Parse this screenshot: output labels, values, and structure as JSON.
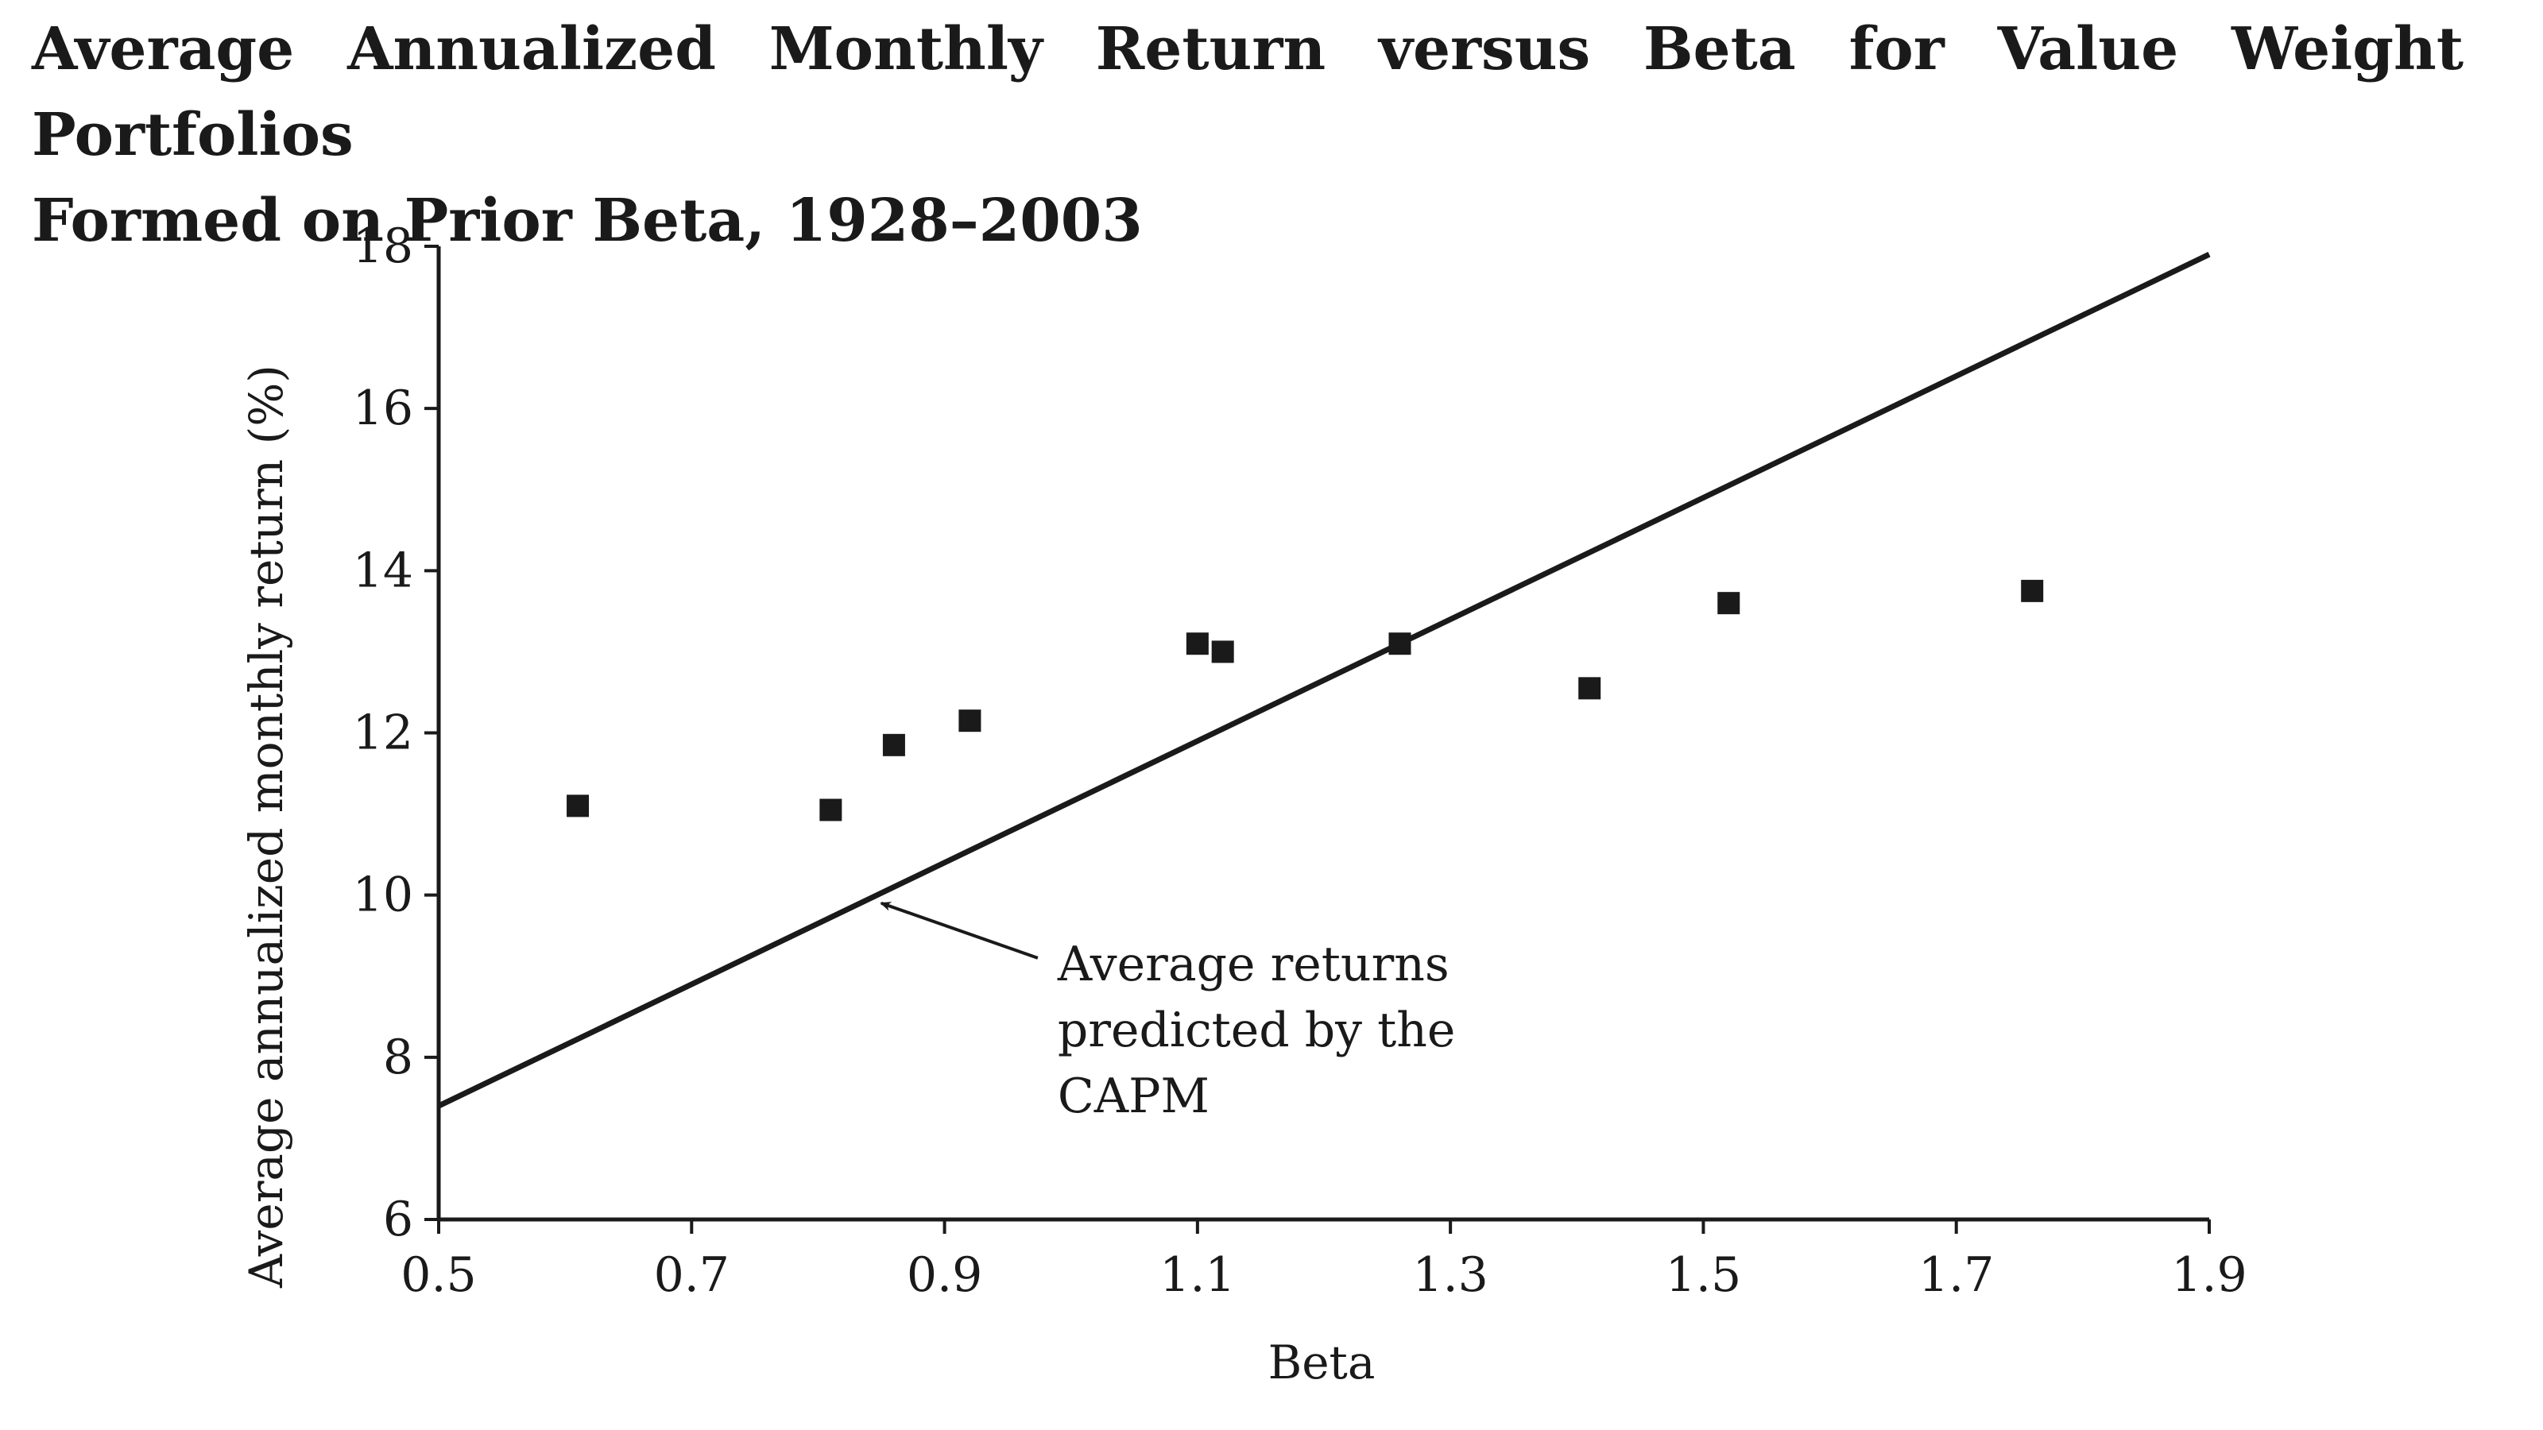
{
  "title": {
    "line1": "Average Annualized Monthly Return versus Beta for Value Weight Portfolios",
    "line2": "Formed on Prior Beta, 1928–2003"
  },
  "chart_data": {
    "type": "scatter",
    "title": "Average Annualized Monthly Return versus Beta for Value Weight Portfolios Formed on Prior Beta, 1928–2003",
    "xlabel": "Beta",
    "ylabel": "Average annualized monthly return (%)",
    "xlim": [
      0.5,
      1.9
    ],
    "ylim": [
      6,
      18
    ],
    "xticks": [
      "0.5",
      "0.7",
      "0.9",
      "1.1",
      "1.3",
      "1.5",
      "1.7",
      "1.9"
    ],
    "yticks": [
      "6",
      "8",
      "10",
      "12",
      "14",
      "16",
      "18"
    ],
    "grid": false,
    "points": [
      {
        "x": 0.61,
        "y": 11.1
      },
      {
        "x": 0.81,
        "y": 11.05
      },
      {
        "x": 0.86,
        "y": 11.85
      },
      {
        "x": 0.92,
        "y": 12.15
      },
      {
        "x": 1.1,
        "y": 13.1
      },
      {
        "x": 1.12,
        "y": 13.0
      },
      {
        "x": 1.26,
        "y": 13.1
      },
      {
        "x": 1.41,
        "y": 12.55
      },
      {
        "x": 1.52,
        "y": 13.6
      },
      {
        "x": 1.76,
        "y": 13.75
      }
    ],
    "capm_line": {
      "x": [
        0.5,
        1.9
      ],
      "y": [
        7.4,
        17.9
      ]
    },
    "annotation": {
      "lines": [
        "Average returns",
        "predicted by the",
        "CAPM"
      ],
      "arrow_target": {
        "x": 0.85,
        "y": 9.9
      },
      "text_anchor": {
        "x": 0.98,
        "y": 8.95
      }
    }
  }
}
